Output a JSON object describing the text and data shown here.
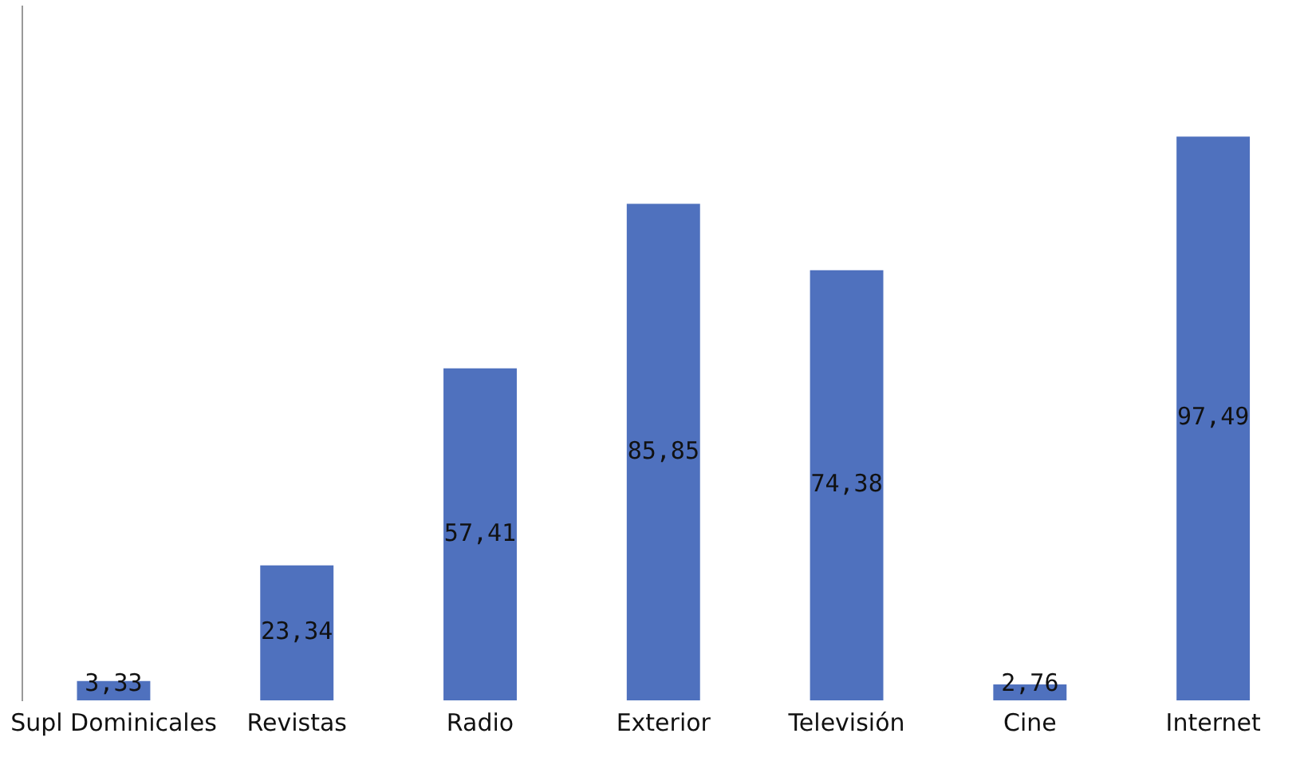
{
  "chart_data": {
    "type": "bar",
    "categories": [
      "Supl Dominicales",
      "Revistas",
      "Radio",
      "Exterior",
      "Televisión",
      "Cine",
      "Internet"
    ],
    "values": [
      3.33,
      23.34,
      57.41,
      85.85,
      74.38,
      2.76,
      97.49
    ],
    "value_labels": [
      "3,33",
      "23,34",
      "57,41",
      "85,85",
      "74,38",
      "2,76",
      "97,49"
    ],
    "color": "#4f71be",
    "grid": false,
    "legend": false,
    "tick_labels": "x"
  }
}
